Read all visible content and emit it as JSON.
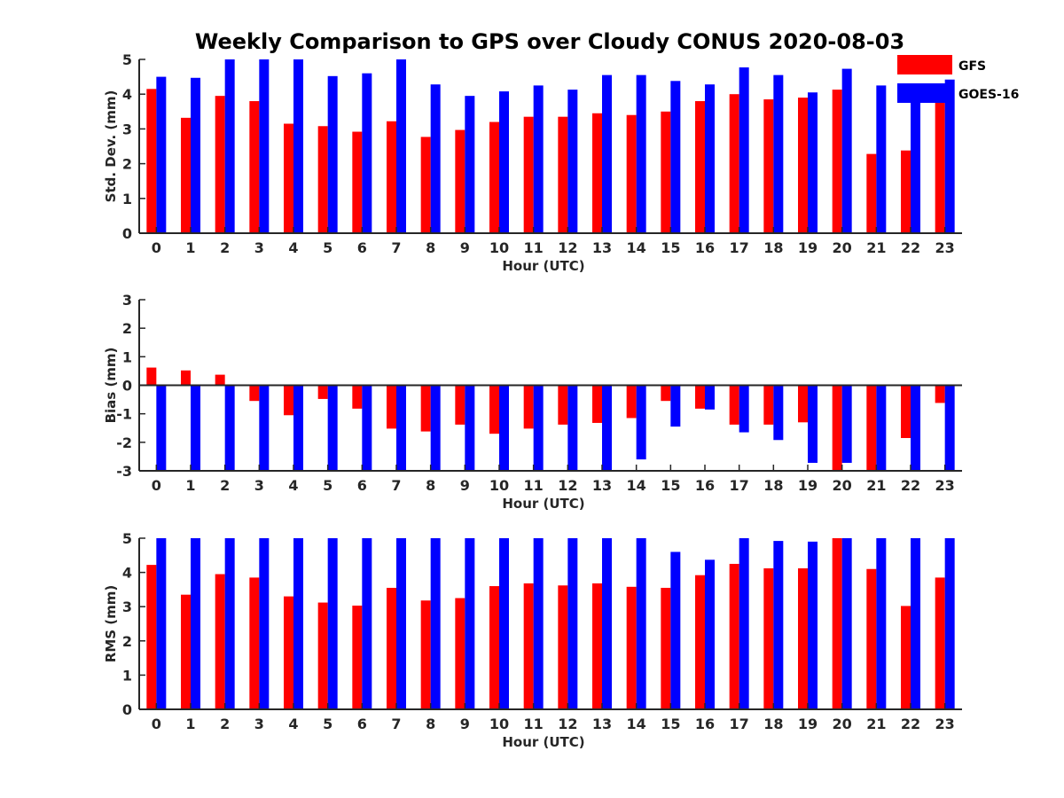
{
  "chart_data": {
    "type": "bar",
    "title": "Weekly Comparison to GPS over Cloudy CONUS 2020-08-03",
    "legend": {
      "placement": "top-right",
      "entries": [
        "GFS",
        "GOES-16"
      ]
    },
    "colors": {
      "GFS": "#ff0000",
      "GOES-16": "#0000ff",
      "axis": "#262626"
    },
    "categories": [
      "0",
      "1",
      "2",
      "3",
      "4",
      "5",
      "6",
      "7",
      "8",
      "9",
      "10",
      "11",
      "12",
      "13",
      "14",
      "15",
      "16",
      "17",
      "18",
      "19",
      "20",
      "21",
      "22",
      "23"
    ],
    "panels": [
      {
        "id": "std",
        "ylabel": "Std. Dev. (mm)",
        "xlabel": "Hour (UTC)",
        "ylim": [
          0,
          5
        ],
        "yticks": [
          "0",
          "1",
          "2",
          "3",
          "4",
          "5"
        ],
        "zero_line": false,
        "series": [
          {
            "name": "GFS",
            "values": [
              4.15,
              3.32,
              3.95,
              3.8,
              3.15,
              3.08,
              2.92,
              3.22,
              2.77,
              2.97,
              3.2,
              3.35,
              3.35,
              3.45,
              3.4,
              3.5,
              3.8,
              4.0,
              3.85,
              3.9,
              4.13,
              2.28,
              2.38,
              3.85
            ]
          },
          {
            "name": "GOES-16",
            "values": [
              4.5,
              4.47,
              5.0,
              5.0,
              5.0,
              4.52,
              4.6,
              5.0,
              4.28,
              3.95,
              4.08,
              4.25,
              4.13,
              4.55,
              4.55,
              4.38,
              4.28,
              4.77,
              4.55,
              4.05,
              4.73,
              4.25,
              4.13,
              4.42
            ]
          }
        ]
      },
      {
        "id": "bias",
        "ylabel": "Bias (mm)",
        "xlabel": "Hour (UTC)",
        "ylim": [
          -3,
          3
        ],
        "yticks": [
          "-3",
          "-2",
          "-1",
          "0",
          "1",
          "2",
          "3"
        ],
        "zero_line": true,
        "series": [
          {
            "name": "GFS",
            "values": [
              0.62,
              0.52,
              0.37,
              -0.55,
              -1.05,
              -0.48,
              -0.82,
              -1.52,
              -1.62,
              -1.38,
              -1.7,
              -1.52,
              -1.38,
              -1.32,
              -1.15,
              -0.55,
              -0.82,
              -1.38,
              -1.38,
              -1.3,
              -3.0,
              -3.0,
              -1.85,
              -0.62
            ]
          },
          {
            "name": "GOES-16",
            "values": [
              -3.0,
              -3.0,
              -3.0,
              -3.0,
              -3.0,
              -3.0,
              -3.0,
              -3.0,
              -3.0,
              -3.0,
              -3.0,
              -3.0,
              -3.0,
              -3.0,
              -2.6,
              -1.45,
              -0.85,
              -1.65,
              -1.92,
              -2.72,
              -2.72,
              -3.0,
              -3.0,
              -3.0
            ]
          }
        ]
      },
      {
        "id": "rms",
        "ylabel": "RMS (mm)",
        "xlabel": "Hour (UTC)",
        "ylim": [
          0,
          5
        ],
        "yticks": [
          "0",
          "1",
          "2",
          "3",
          "4",
          "5"
        ],
        "zero_line": false,
        "series": [
          {
            "name": "GFS",
            "values": [
              4.22,
              3.35,
              3.95,
              3.85,
              3.3,
              3.12,
              3.03,
              3.55,
              3.18,
              3.25,
              3.6,
              3.68,
              3.62,
              3.68,
              3.58,
              3.55,
              3.92,
              4.25,
              4.12,
              4.12,
              5.0,
              4.1,
              3.02,
              3.85
            ]
          },
          {
            "name": "GOES-16",
            "values": [
              5.0,
              5.0,
              5.0,
              5.0,
              5.0,
              5.0,
              5.0,
              5.0,
              5.0,
              5.0,
              5.0,
              5.0,
              5.0,
              5.0,
              5.0,
              4.6,
              4.37,
              5.0,
              4.92,
              4.9,
              5.0,
              5.0,
              5.0,
              5.0
            ]
          }
        ]
      }
    ]
  }
}
